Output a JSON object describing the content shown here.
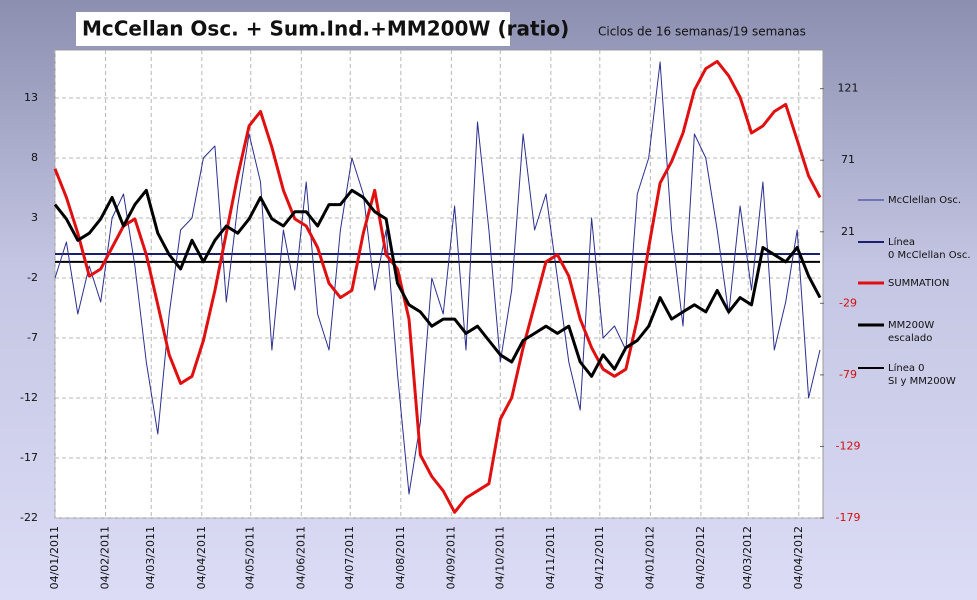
{
  "chart_data": {
    "type": "line",
    "title": "McCellan Osc. + Sum.Ind.+MM200W (ratio)",
    "subtitle": "Ciclos de 16 semanas/19 semanas",
    "x": [
      "04/01/2011",
      "11/01/2011",
      "18/01/2011",
      "25/01/2011",
      "01/02/2011",
      "08/02/2011",
      "15/02/2011",
      "22/02/2011",
      "01/03/2011",
      "08/03/2011",
      "15/03/2011",
      "22/03/2011",
      "29/03/2011",
      "05/04/2011",
      "12/04/2011",
      "19/04/2011",
      "26/04/2011",
      "03/05/2011",
      "10/05/2011",
      "17/05/2011",
      "24/05/2011",
      "31/05/2011",
      "07/06/2011",
      "14/06/2011",
      "21/06/2011",
      "28/06/2011",
      "05/07/2011",
      "12/07/2011",
      "19/07/2011",
      "26/07/2011",
      "02/08/2011",
      "09/08/2011",
      "16/08/2011",
      "23/08/2011",
      "30/08/2011",
      "06/09/2011",
      "13/09/2011",
      "20/09/2011",
      "27/09/2011",
      "04/10/2011",
      "11/10/2011",
      "18/10/2011",
      "25/10/2011",
      "01/11/2011",
      "08/11/2011",
      "15/11/2011",
      "22/11/2011",
      "29/11/2011",
      "06/12/2011",
      "13/12/2011",
      "20/12/2011",
      "27/12/2011",
      "03/01/2012",
      "10/01/2012",
      "17/01/2012",
      "24/01/2012",
      "31/01/2012",
      "07/02/2012",
      "14/02/2012",
      "21/02/2012",
      "28/02/2012",
      "06/03/2012",
      "13/03/2012",
      "20/03/2012",
      "27/03/2012",
      "03/04/2012",
      "10/04/2012",
      "17/04/2012"
    ],
    "xlim": [
      "04/01/2011",
      "17/04/2012"
    ],
    "xticks": [
      "04/01/2011",
      "04/02/2011",
      "04/03/2011",
      "04/04/2011",
      "04/05/2011",
      "04/06/2011",
      "04/07/2011",
      "04/08/2011",
      "04/09/2011",
      "04/10/2011",
      "04/11/2011",
      "04/12/2011",
      "04/01/2012",
      "04/02/2012",
      "04/03/2012",
      "04/04/2012"
    ],
    "ylim": [
      -22,
      17
    ],
    "yticks": [
      -22,
      -17,
      -12,
      -7,
      -2,
      3,
      8,
      13
    ],
    "y2lim": [
      -179,
      148
    ],
    "y2ticks": [
      -179,
      -129,
      -79,
      -29,
      21,
      71,
      121
    ],
    "grid": true,
    "series": [
      {
        "name": "McClellan Osc.",
        "color": "#2b2f8f",
        "width": 1,
        "values": [
          -2,
          1,
          -5,
          -1,
          -4,
          3,
          5,
          -1,
          -9,
          -15,
          -5,
          2,
          3,
          8,
          9,
          -4,
          4,
          10,
          6,
          -8,
          2,
          -3,
          6,
          -5,
          -8,
          2,
          8,
          5,
          -3,
          2,
          -10,
          -20,
          -14,
          -2,
          -5,
          4,
          -8,
          11,
          2,
          -9,
          -3,
          10,
          2,
          5,
          -2,
          -9,
          -13,
          3,
          -7,
          -6,
          -8,
          5,
          8,
          16,
          2,
          -6,
          10,
          8,
          2,
          -5,
          4,
          -3,
          6,
          -8,
          -4,
          2,
          -12,
          -8
        ]
      },
      {
        "name": "SUMMATION",
        "color": "#e01010",
        "width": 3,
        "axis": "y2",
        "values": [
          65,
          45,
          20,
          -10,
          -5,
          10,
          25,
          30,
          5,
          -30,
          -65,
          -85,
          -80,
          -55,
          -20,
          20,
          60,
          95,
          105,
          80,
          50,
          30,
          25,
          10,
          -15,
          -25,
          -20,
          20,
          50,
          5,
          -5,
          -40,
          -135,
          -150,
          -160,
          -175,
          -165,
          -160,
          -155,
          -110,
          -95,
          -60,
          -30,
          0,
          5,
          -10,
          -40,
          -60,
          -75,
          -80,
          -75,
          -40,
          10,
          55,
          70,
          90,
          120,
          135,
          140,
          130,
          115,
          90,
          95,
          105,
          110,
          85,
          60,
          45
        ]
      },
      {
        "name": "MM200W escalado",
        "color": "#000000",
        "width": 3,
        "axis": "y2",
        "values": [
          40,
          30,
          15,
          20,
          30,
          45,
          25,
          40,
          50,
          20,
          5,
          -5,
          15,
          0,
          15,
          25,
          20,
          30,
          45,
          30,
          25,
          35,
          35,
          25,
          40,
          40,
          50,
          45,
          35,
          30,
          -15,
          -30,
          -35,
          -45,
          -40,
          -40,
          -50,
          -45,
          -55,
          -65,
          -70,
          -55,
          -50,
          -45,
          -50,
          -45,
          -70,
          -80,
          -65,
          -75,
          -60,
          -55,
          -45,
          -25,
          -40,
          -35,
          -30,
          -35,
          -20,
          -35,
          -25,
          -30,
          10,
          5,
          0,
          10,
          -10,
          -25
        ]
      }
    ],
    "reference_lines": [
      {
        "name": "Línea 0 McClellan Osc.",
        "value": 0,
        "color": "#1a1f6e"
      },
      {
        "name": "Línea 0 SI y MM200W",
        "value": 0,
        "axis": "y2",
        "color": "#000000"
      }
    ]
  }
}
